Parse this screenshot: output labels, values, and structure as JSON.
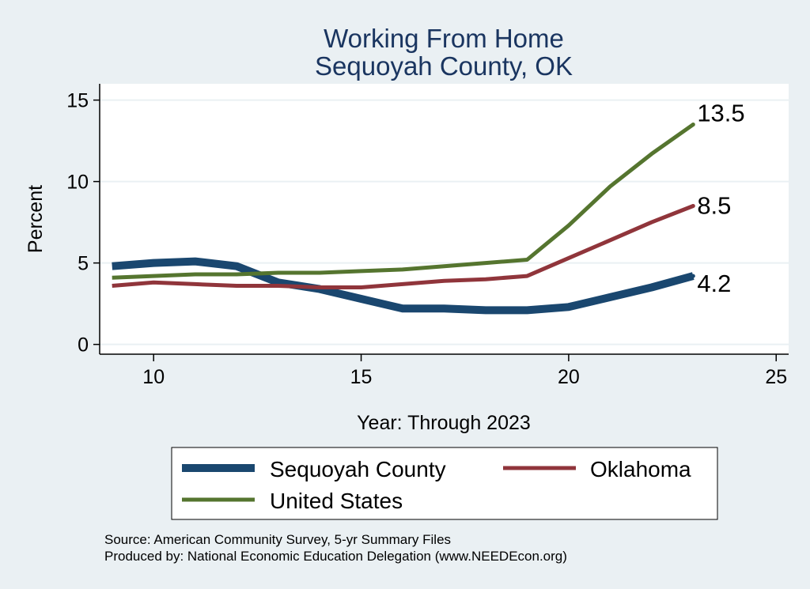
{
  "chart_data": {
    "type": "line",
    "title": "Working From Home",
    "subtitle": "Sequoyah County, OK",
    "xlabel": "Year: Through 2023",
    "ylabel": "Percent",
    "xlim": [
      8.7,
      25.3
    ],
    "ylim": [
      -0.6,
      16
    ],
    "x_ticks": [
      10,
      15,
      20,
      25
    ],
    "y_ticks": [
      0,
      5,
      10,
      15
    ],
    "grid": true,
    "legend_position": "bottom",
    "series": [
      {
        "name": "Sequoyah County",
        "color": "#1a476f",
        "x": [
          9,
          10,
          11,
          12,
          13,
          14,
          15,
          16,
          17,
          18,
          19,
          20,
          21,
          22,
          23
        ],
        "values": [
          4.8,
          5.0,
          5.1,
          4.8,
          3.8,
          3.4,
          2.8,
          2.2,
          2.2,
          2.1,
          2.1,
          2.3,
          2.9,
          3.5,
          4.2
        ],
        "end_label": "4.2"
      },
      {
        "name": "Oklahoma",
        "color": "#90353b",
        "x": [
          9,
          10,
          11,
          12,
          13,
          14,
          15,
          16,
          17,
          18,
          19,
          20,
          21,
          22,
          23
        ],
        "values": [
          3.6,
          3.8,
          3.7,
          3.6,
          3.6,
          3.5,
          3.5,
          3.7,
          3.9,
          4.0,
          4.2,
          5.3,
          6.4,
          7.5,
          8.5
        ],
        "end_label": "8.5"
      },
      {
        "name": "United States",
        "color": "#55752f",
        "x": [
          9,
          10,
          11,
          12,
          13,
          14,
          15,
          16,
          17,
          18,
          19,
          20,
          21,
          22,
          23
        ],
        "values": [
          4.1,
          4.2,
          4.3,
          4.3,
          4.4,
          4.4,
          4.5,
          4.6,
          4.8,
          5.0,
          5.2,
          7.3,
          9.7,
          11.7,
          13.5
        ],
        "end_label": "13.5"
      }
    ],
    "notes": [
      "Source: American Community Survey, 5-yr Summary Files",
      "Produced by: National Economic Education Delegation (www.NEEDEcon.org)"
    ]
  }
}
